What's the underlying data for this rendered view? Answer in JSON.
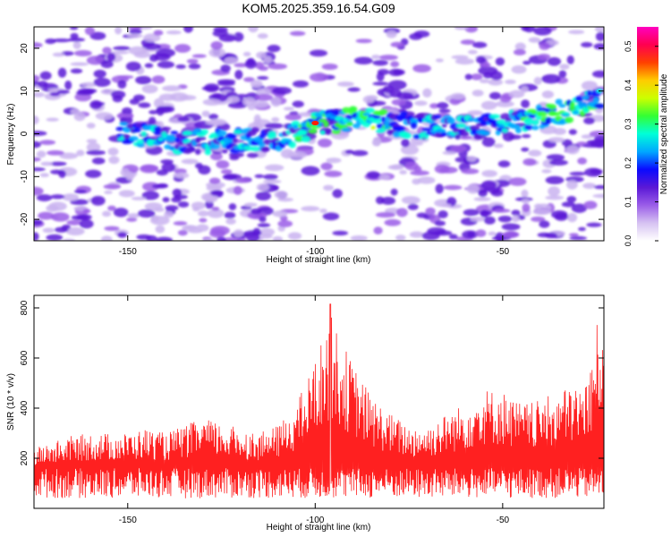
{
  "title": "KOM5.2025.359.16.54.G09",
  "chart_data": [
    {
      "type": "heatmap",
      "xlabel": "Height of straight line (km)",
      "ylabel": "Frequency (Hz)",
      "xlim": [
        -175,
        -23
      ],
      "ylim": [
        -25,
        25
      ],
      "xticks": [
        -150,
        -100,
        -50
      ],
      "yticks": [
        -20,
        -10,
        0,
        10,
        20
      ],
      "colorbar": {
        "label": "Normalized spectral amplitude",
        "range": [
          0.0,
          0.55
        ],
        "ticks": [
          0.0,
          0.1,
          0.2,
          0.3,
          0.4,
          0.5
        ],
        "colormap": [
          "#ffffff",
          "#d6c2f2",
          "#9a5ce8",
          "#5a18d6",
          "#0a0aff",
          "#00a8ff",
          "#00ffd8",
          "#33ff33",
          "#ccff00",
          "#ffcc00",
          "#ff4000",
          "#ff0050",
          "#ff00c0"
        ]
      },
      "ridge": [
        {
          "x": -150,
          "y": 0.5
        },
        {
          "x": -140,
          "y": -1.5
        },
        {
          "x": -130,
          "y": -2.0
        },
        {
          "x": -120,
          "y": -1.5
        },
        {
          "x": -110,
          "y": -1.5
        },
        {
          "x": -105,
          "y": 0.0
        },
        {
          "x": -100,
          "y": 2.5
        },
        {
          "x": -90,
          "y": 3.5
        },
        {
          "x": -80,
          "y": 2.5
        },
        {
          "x": -70,
          "y": 1.5
        },
        {
          "x": -60,
          "y": 1.5
        },
        {
          "x": -50,
          "y": 2.5
        },
        {
          "x": -40,
          "y": 4.0
        },
        {
          "x": -30,
          "y": 6.0
        },
        {
          "x": -25,
          "y": 8.0
        }
      ],
      "peak": {
        "x": -100,
        "y": 2.5,
        "amplitude": 0.55
      }
    },
    {
      "type": "line",
      "xlabel": "Height of straight line (km)",
      "ylabel": "SNR (10 * v/v)",
      "xlim": [
        -175,
        -23
      ],
      "ylim": [
        0,
        850
      ],
      "xticks": [
        -150,
        -100,
        -50
      ],
      "yticks": [
        200,
        400,
        600,
        800
      ],
      "color": "#ff2020",
      "envelope": [
        {
          "x": -175,
          "y": 240
        },
        {
          "x": -165,
          "y": 290
        },
        {
          "x": -160,
          "y": 300
        },
        {
          "x": -150,
          "y": 300
        },
        {
          "x": -145,
          "y": 320
        },
        {
          "x": -140,
          "y": 300
        },
        {
          "x": -135,
          "y": 330
        },
        {
          "x": -130,
          "y": 360
        },
        {
          "x": -125,
          "y": 340
        },
        {
          "x": -120,
          "y": 320
        },
        {
          "x": -115,
          "y": 300
        },
        {
          "x": -110,
          "y": 330
        },
        {
          "x": -105,
          "y": 420
        },
        {
          "x": -102,
          "y": 520
        },
        {
          "x": -98,
          "y": 680
        },
        {
          "x": -96,
          "y": 780
        },
        {
          "x": -94,
          "y": 700
        },
        {
          "x": -90,
          "y": 580
        },
        {
          "x": -85,
          "y": 450
        },
        {
          "x": -80,
          "y": 380
        },
        {
          "x": -75,
          "y": 330
        },
        {
          "x": -70,
          "y": 330
        },
        {
          "x": -65,
          "y": 380
        },
        {
          "x": -60,
          "y": 420
        },
        {
          "x": -55,
          "y": 480
        },
        {
          "x": -50,
          "y": 470
        },
        {
          "x": -45,
          "y": 420
        },
        {
          "x": -40,
          "y": 430
        },
        {
          "x": -35,
          "y": 470
        },
        {
          "x": -30,
          "y": 500
        },
        {
          "x": -27,
          "y": 520
        },
        {
          "x": -24,
          "y": 820
        }
      ],
      "baseline_mean": 130,
      "peak": {
        "x": -96,
        "y": 815
      }
    }
  ]
}
